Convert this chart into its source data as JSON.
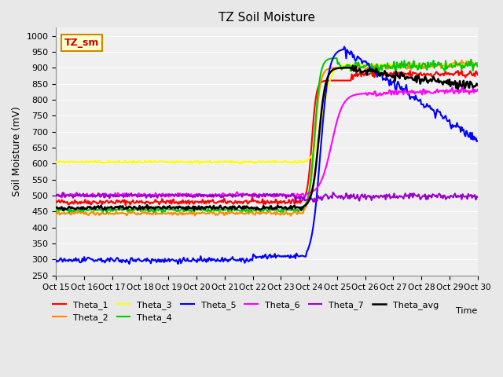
{
  "title": "TZ Soil Moisture",
  "ylabel": "Soil Moisture (mV)",
  "xlabel": "Time",
  "box_label": "TZ_sm",
  "ylim": [
    250,
    1025
  ],
  "yticks": [
    250,
    300,
    350,
    400,
    450,
    500,
    550,
    600,
    650,
    700,
    750,
    800,
    850,
    900,
    950,
    1000
  ],
  "x_labels": [
    "Oct 15",
    "Oct 16",
    "Oct 17",
    "Oct 18",
    "Oct 19",
    "Oct 20",
    "Oct 21",
    "Oct 22",
    "Oct 23",
    "Oct 24",
    "Oct 25",
    "Oct 26",
    "Oct 27",
    "Oct 28",
    "Oct 29",
    "Oct 30"
  ],
  "series": {
    "Theta_1": {
      "color": "#ff0000",
      "lw": 1.5
    },
    "Theta_2": {
      "color": "#ff8c00",
      "lw": 1.5
    },
    "Theta_3": {
      "color": "#ffff00",
      "lw": 1.5
    },
    "Theta_4": {
      "color": "#00cc00",
      "lw": 1.5
    },
    "Theta_5": {
      "color": "#0000ff",
      "lw": 1.5
    },
    "Theta_6": {
      "color": "#ff00ff",
      "lw": 1.5
    },
    "Theta_7": {
      "color": "#9900cc",
      "lw": 1.5
    },
    "Theta_avg": {
      "color": "#000000",
      "lw": 1.8
    }
  },
  "bg_color": "#e8e8e8",
  "plot_bg": "#f0f0f0",
  "grid_color": "#ffffff",
  "n_points": 450
}
